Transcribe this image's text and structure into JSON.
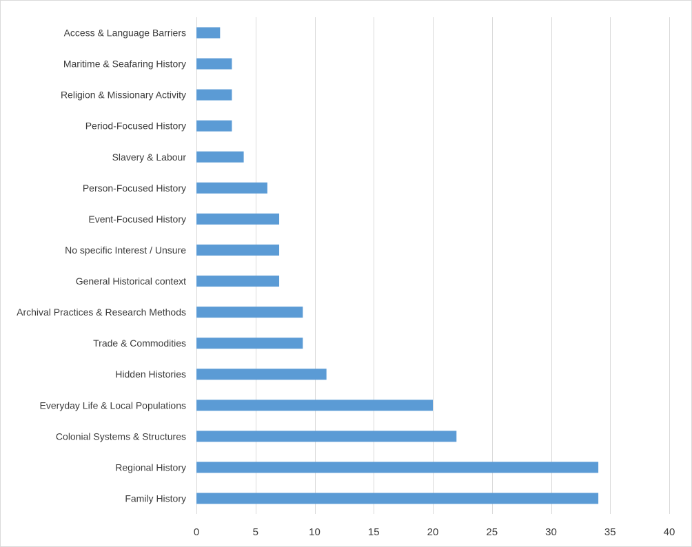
{
  "chart_data": {
    "type": "bar",
    "orientation": "horizontal",
    "title": "",
    "xlabel": "",
    "ylabel": "",
    "categories": [
      "Access & Language Barriers",
      "Maritime & Seafaring History",
      "Religion & Missionary Activity",
      "Period-Focused History",
      "Slavery & Labour",
      "Person-Focused History",
      "Event-Focused History",
      "No specific Interest / Unsure",
      "General Historical context",
      "Archival Practices & Research Methods",
      "Trade & Commodities",
      "Hidden Histories",
      "Everyday Life & Local Populations",
      "Colonial Systems & Structures",
      "Regional History",
      "Family History"
    ],
    "values": [
      2,
      3,
      3,
      3,
      4,
      6,
      7,
      7,
      7,
      9,
      9,
      11,
      20,
      22,
      34,
      34
    ],
    "xlim": [
      0,
      40
    ],
    "xticks": [
      0,
      5,
      10,
      15,
      20,
      25,
      30,
      35,
      40
    ],
    "grid": "vertical",
    "legend": "none",
    "bar_color": "#5b9bd5",
    "grid_color": "#d9d9d9"
  }
}
